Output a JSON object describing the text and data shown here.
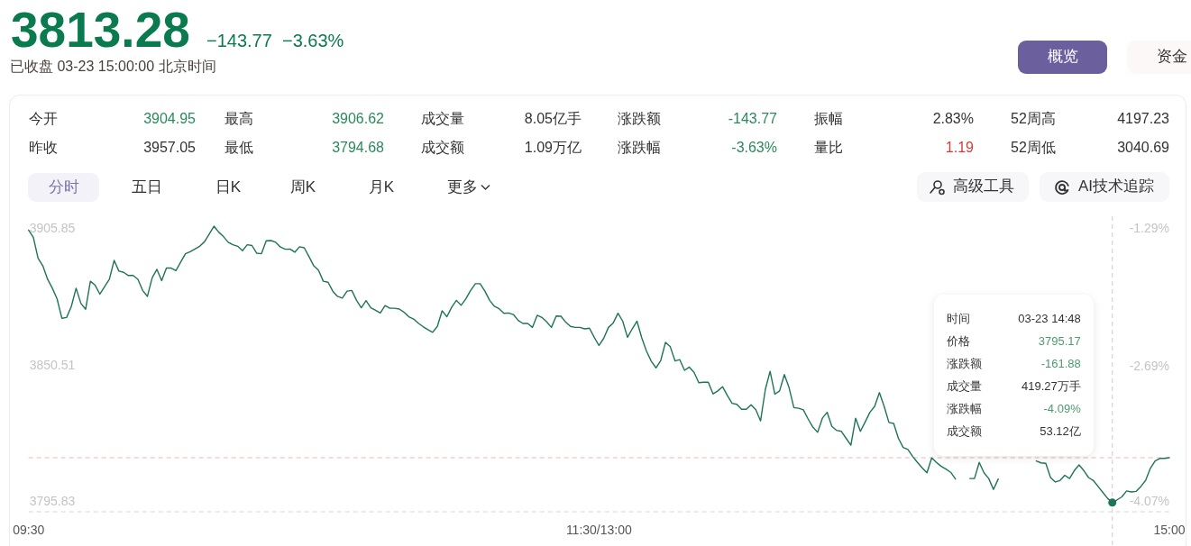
{
  "chart_data": {
    "type": "line",
    "title": "3813.28",
    "subtitle": "已收盘 03-23 15:00:00 北京时间",
    "categories": [
      "09:30",
      null,
      null,
      null,
      null,
      null,
      null,
      null,
      null,
      null,
      null,
      null,
      null,
      null,
      null,
      null,
      null,
      null,
      null,
      null,
      null,
      null,
      null,
      null,
      null,
      null,
      null,
      null,
      null,
      null,
      null,
      null,
      null,
      null,
      null,
      null,
      null,
      null,
      null,
      null,
      null,
      null,
      null,
      null,
      null,
      null,
      null,
      null,
      null,
      null,
      null,
      null,
      null,
      null,
      null,
      null,
      null,
      null,
      null,
      null,
      null,
      null,
      null,
      null,
      null,
      null,
      null,
      null,
      null,
      null,
      null,
      null,
      null,
      null,
      null,
      null,
      null,
      null,
      null,
      null,
      null,
      null,
      null,
      null,
      null,
      null,
      null,
      null,
      null,
      null,
      null,
      null,
      null,
      null,
      null,
      null,
      null,
      null,
      null,
      null,
      null,
      null,
      null,
      null,
      null,
      null,
      null,
      null,
      null,
      null,
      null,
      null,
      null,
      null,
      null,
      null,
      null,
      null,
      null,
      null,
      "11:30/13:00",
      null,
      null,
      null,
      null,
      null,
      null,
      null,
      null,
      null,
      null,
      null,
      null,
      null,
      null,
      null,
      null,
      null,
      null,
      null,
      null,
      null,
      null,
      null,
      null,
      null,
      null,
      null,
      null,
      null,
      null,
      null,
      null,
      null,
      null,
      null,
      null,
      null,
      null,
      null,
      null,
      null,
      null,
      null,
      null,
      null,
      null,
      null,
      null,
      null,
      null,
      null,
      null,
      null,
      null,
      null,
      null,
      null,
      null,
      null,
      null,
      null,
      null,
      null,
      null,
      null,
      null,
      null,
      null,
      null,
      null,
      null,
      null,
      null,
      null,
      null,
      null,
      null,
      null,
      null,
      null,
      null,
      null,
      null,
      null,
      null,
      null,
      null,
      null,
      null,
      null,
      null,
      null,
      null,
      null,
      null,
      null,
      null,
      null,
      null,
      null,
      null,
      null,
      null,
      null,
      null,
      null,
      null,
      null,
      null,
      null,
      null,
      null,
      null,
      null,
      null,
      null,
      null,
      null,
      null,
      "15:00"
    ],
    "series": [
      {
        "color": "#1e7358",
        "values": [
          3905.0,
          3902.1,
          3893.7,
          3890.6,
          3885.2,
          3881.6,
          3877.3,
          3869.5,
          3869.8,
          3874.3,
          3881.6,
          3875.5,
          3873.1,
          3884.4,
          3882.8,
          3879.2,
          3882.2,
          3885.2,
          3892.8,
          3888.5,
          3888.0,
          3886.7,
          3886.7,
          3885.2,
          3880.7,
          3878.3,
          3885.8,
          3889.2,
          3884.6,
          3889.7,
          3889.7,
          3888.7,
          3892.1,
          3895.5,
          3896.3,
          3897.4,
          3898.5,
          3900.3,
          3903.4,
          3906.6,
          3904.2,
          3902.4,
          3900.1,
          3899.1,
          3898.5,
          3896.7,
          3899.1,
          3898.8,
          3895.7,
          3895.5,
          3900.7,
          3900.8,
          3900.1,
          3898.2,
          3897.3,
          3897.4,
          3896.1,
          3898.3,
          3897.9,
          3894.3,
          3890.6,
          3888.8,
          3884.4,
          3884.0,
          3880.4,
          3878.3,
          3877.6,
          3880.4,
          3880.7,
          3876.7,
          3873.7,
          3876.6,
          3873.7,
          3872.7,
          3871.6,
          3874.6,
          3873.5,
          3873.5,
          3873.2,
          3871.9,
          3870.1,
          3869.2,
          3867.5,
          3866.1,
          3864.9,
          3863.8,
          3866.2,
          3872.5,
          3870.1,
          3873.9,
          3876.7,
          3874.7,
          3877.3,
          3880.7,
          3883.4,
          3883.4,
          3880.4,
          3876.7,
          3874.3,
          3873.3,
          3871.5,
          3871.6,
          3871.0,
          3868.6,
          3867.4,
          3867.4,
          3865.8,
          3870.7,
          3869.8,
          3868.0,
          3865.8,
          3870.4,
          3870.3,
          3867.9,
          3866.2,
          3865.8,
          3865.8,
          3865.2,
          3865.5,
          3861.8,
          3858.5,
          3861.4,
          3865.8,
          3867.6,
          3871.5,
          3868.3,
          3861.8,
          3865.2,
          3868.3,
          3861.6,
          3856.2,
          3852.2,
          3849.5,
          3852.5,
          3859.8,
          3858.0,
          3852.3,
          3852.8,
          3848.5,
          3849.8,
          3847.7,
          3843.5,
          3843.7,
          3843.7,
          3839.0,
          3840.2,
          3841.9,
          3838.4,
          3835.2,
          3834.8,
          3832.8,
          3832.8,
          3834.6,
          3832.6,
          3828.1,
          3840.8,
          3848.1,
          3838.9,
          3840.2,
          3846.8,
          3841.5,
          3833.5,
          3833.2,
          3832.6,
          3828.9,
          3825.6,
          3823.5,
          3829.2,
          3831.6,
          3825.9,
          3824.3,
          3823.9,
          3821.1,
          3818.3,
          3829.2,
          3823.9,
          3827.7,
          3831.6,
          3834.0,
          3839.5,
          3834.0,
          3827.5,
          3827.1,
          3821.1,
          3817.4,
          3816.6,
          3813.8,
          3811.4,
          3809.2,
          3807.2,
          3813.2,
          3811.4,
          3809.8,
          3808.7,
          3807.4,
          3804.7,
          null,
          null,
          3804.9,
          3804.9,
          3811.4,
          3807.2,
          3804.9,
          3800.5,
          3804.7,
          null,
          null,
          null,
          null,
          null,
          null,
          null,
          3812.0,
          3811.2,
          3811.0,
          3805.3,
          3803.5,
          3804.1,
          3806.2,
          3804.9,
          3808.1,
          3810.4,
          3808.1,
          3805.3,
          3804.1,
          3801.7,
          3799.3,
          3796.9,
          3795.2,
          3796.3,
          3797.5,
          3799.9,
          3799.5,
          3799.7,
          3801.7,
          3804.1,
          3809.0,
          3812.0,
          3813.0,
          3813.0,
          3813.3
        ]
      },
      {
        "type": "scatter",
        "marker": "circle",
        "color": "#1e7358",
        "values": [
          null,
          null,
          null,
          null,
          null,
          null,
          null,
          null,
          null,
          null,
          null,
          null,
          null,
          null,
          null,
          null,
          null,
          null,
          null,
          null,
          null,
          null,
          null,
          null,
          null,
          null,
          null,
          null,
          null,
          null,
          null,
          null,
          null,
          null,
          null,
          null,
          null,
          null,
          null,
          null,
          null,
          null,
          null,
          null,
          null,
          null,
          null,
          null,
          null,
          null,
          null,
          null,
          null,
          null,
          null,
          null,
          null,
          null,
          null,
          null,
          null,
          null,
          null,
          null,
          null,
          null,
          null,
          null,
          null,
          null,
          null,
          null,
          null,
          null,
          null,
          null,
          null,
          null,
          null,
          null,
          null,
          null,
          null,
          null,
          null,
          null,
          null,
          null,
          null,
          null,
          null,
          null,
          null,
          null,
          null,
          null,
          null,
          null,
          null,
          null,
          null,
          null,
          null,
          null,
          null,
          null,
          null,
          null,
          null,
          null,
          null,
          null,
          null,
          null,
          null,
          null,
          null,
          null,
          null,
          null,
          null,
          null,
          null,
          null,
          null,
          null,
          null,
          null,
          null,
          null,
          null,
          null,
          null,
          null,
          null,
          null,
          null,
          null,
          null,
          null,
          null,
          null,
          null,
          null,
          null,
          null,
          null,
          null,
          null,
          null,
          null,
          null,
          null,
          null,
          null,
          null,
          null,
          null,
          null,
          null,
          null,
          null,
          null,
          null,
          null,
          null,
          null,
          null,
          null,
          null,
          null,
          null,
          null,
          null,
          null,
          null,
          null,
          null,
          null,
          null,
          null,
          null,
          null,
          null,
          null,
          null,
          null,
          null,
          null,
          null,
          null,
          null,
          null,
          null,
          null,
          null,
          null,
          null,
          null,
          null,
          null,
          null,
          null,
          null,
          null,
          null,
          null,
          null,
          null,
          null,
          null,
          null,
          null,
          null,
          null,
          null,
          null,
          null,
          null,
          null,
          null,
          null,
          null,
          null,
          null,
          null,
          null,
          null,
          3795.2,
          null,
          null,
          null,
          null,
          null,
          null,
          null,
          null,
          null,
          null,
          null,
          null
        ]
      }
    ],
    "ylim": [
      3791.5,
      3910.6
    ],
    "yticks": [
      3905.85,
      3850.51,
      3795.83
    ],
    "y2lim": [
      -4.18,
      -1.17
    ],
    "y2ticks": [
      {
        "value": -1.29,
        "label": "-1.29%"
      },
      {
        "value": -2.69,
        "label": "-2.69%"
      },
      {
        "value": -4.07,
        "label": "-4.07%"
      }
    ],
    "ref_lines": [
      {
        "axis": "y",
        "value": 3813.28,
        "color": "#e9b9ae",
        "line_style": "dashed"
      }
    ],
    "annotations": [
      "−143.77",
      "−3.63%",
      "概览",
      "资金",
      "今开",
      "3904.95",
      "最高",
      "3906.62",
      "成交量",
      "8.05亿手",
      "涨跌额",
      "-143.77",
      "振幅",
      "2.83%",
      "52周高",
      "4197.23",
      "昨收",
      "3957.05",
      "最低",
      "3794.68",
      "成交额",
      "1.09万亿",
      "涨跌幅",
      "-3.63%",
      "量比",
      "1.19",
      "52周低",
      "3040.69",
      "分时",
      "五日",
      "日K",
      "周K",
      "月K",
      "更多",
      "高级工具",
      "AI技术追踪",
      "时间",
      "03-23 14:48",
      "价格",
      "3795.17",
      "涨跌额",
      "-161.88",
      "成交量",
      "419.27万手",
      "涨跌幅",
      "-4.09%",
      "成交额",
      "53.12亿"
    ]
  }
}
